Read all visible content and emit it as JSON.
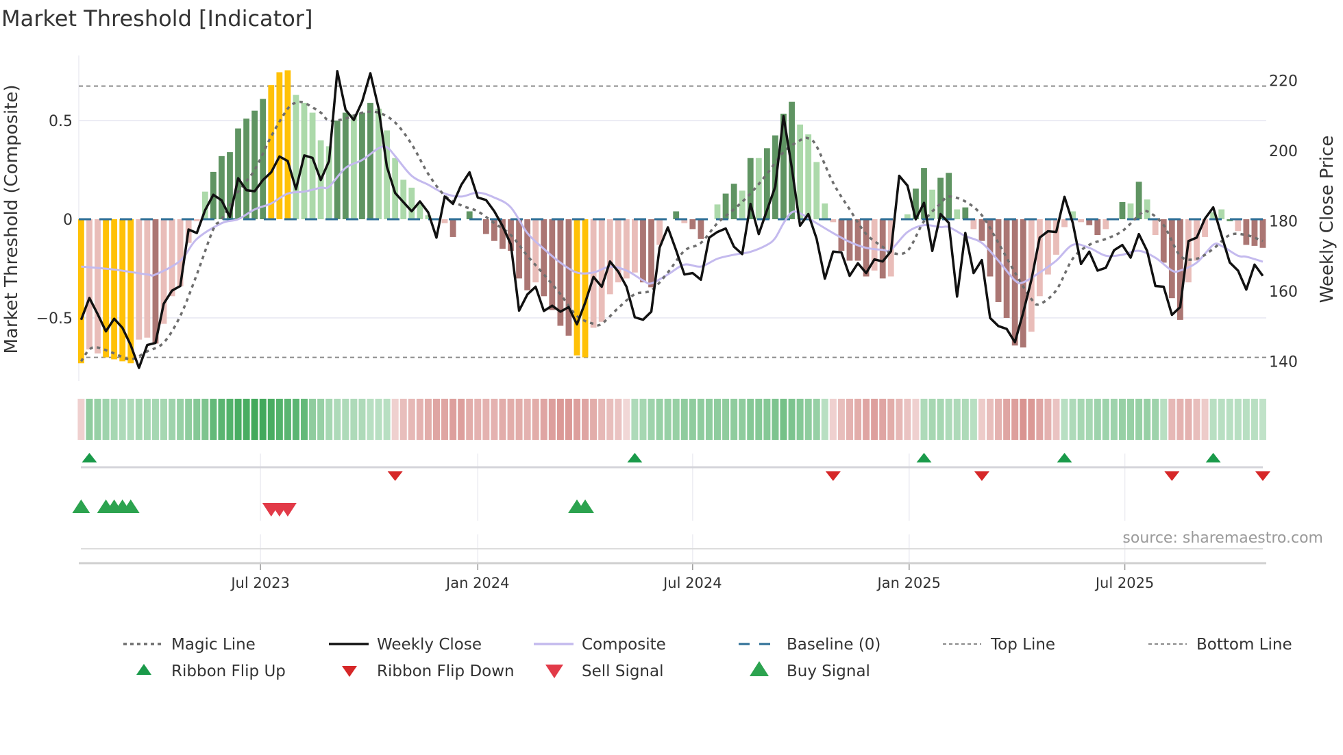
{
  "title": "Market Threshold [Indicator]",
  "source": "source: sharemaestro.com",
  "chart_data": {
    "type": "bar",
    "title": "Market Threshold [Indicator]",
    "ylabel": "Market Threshold (Composite)",
    "ylabel_right": "Weekly Close Price",
    "ylim": [
      -0.82,
      0.83
    ],
    "ylim_right": [
      133.1,
      225.6
    ],
    "yticks": [
      {
        "v": 0.5,
        "label": "0.5"
      },
      {
        "v": 0,
        "label": "0"
      },
      {
        "v": -0.5,
        "label": "−0.5"
      }
    ],
    "yticks_right": [
      {
        "v": 220,
        "label": "220"
      },
      {
        "v": 200,
        "label": "200"
      },
      {
        "v": 180,
        "label": "180"
      },
      {
        "v": 160,
        "label": "160"
      },
      {
        "v": 140,
        "label": "140"
      }
    ],
    "x_unit": "week index (0 = early Feb 2023, 143 = late Oct 2025)",
    "xticks": [
      {
        "x": 21.7,
        "label": "Jul 2023"
      },
      {
        "x": 48.0,
        "label": "Jan 2024"
      },
      {
        "x": 74.0,
        "label": "Jul 2024"
      },
      {
        "x": 100.2,
        "label": "Jan 2025"
      },
      {
        "x": 126.3,
        "label": "Jul 2025"
      }
    ],
    "grid": true,
    "top_line": 0.675,
    "bottom_line": -0.7,
    "baseline": 0,
    "colors": {
      "extreme": "#ffc107",
      "pos_strong": "#5f9462",
      "pos_weak": "#acd9aa",
      "neg_weak": "#e9bdb9",
      "neg_strong": "#ab7673",
      "close": "#111111",
      "composite": "#c4baee",
      "magic": "#6e6e6e",
      "baseline": "#2d6e96",
      "bounds": "#8a8a8a",
      "flip_up": "#1a9a4a",
      "flip_down": "#d62728",
      "buy": "#2ca34f",
      "sell": "#e23a48"
    },
    "bar_type_codes": {
      "y": "extreme",
      "d": "pos_strong",
      "l": "pos_weak",
      "p": "neg_weak",
      "b": "neg_strong"
    },
    "bars": [
      -0.73,
      -0.66,
      -0.68,
      -0.7,
      -0.71,
      -0.72,
      -0.73,
      -0.61,
      -0.6,
      -0.63,
      -0.53,
      -0.39,
      -0.34,
      -0.12,
      -0.01,
      0.14,
      0.24,
      0.32,
      0.34,
      0.46,
      0.51,
      0.55,
      0.61,
      0.68,
      0.745,
      0.755,
      0.63,
      0.59,
      0.54,
      0.4,
      0.37,
      0.5,
      0.54,
      0.53,
      0.54,
      0.59,
      0.56,
      0.45,
      0.31,
      0.2,
      0.16,
      0.08,
      0.02,
      0.005,
      -0.02,
      -0.09,
      0,
      0.04,
      0,
      -0.075,
      -0.11,
      -0.15,
      -0.16,
      -0.3,
      -0.36,
      -0.32,
      -0.39,
      -0.46,
      -0.54,
      -0.59,
      -0.69,
      -0.7,
      -0.55,
      -0.52,
      -0.38,
      -0.32,
      -0.3,
      -0.27,
      -0.32,
      -0.345,
      -0.13,
      0,
      0.04,
      -0.02,
      -0.05,
      -0.1,
      0,
      0.075,
      0.13,
      0.18,
      0.145,
      0.31,
      0.31,
      0.36,
      0.425,
      0.535,
      0.595,
      0.48,
      0.43,
      0.29,
      0.08,
      -0.015,
      -0.16,
      -0.21,
      -0.21,
      -0.29,
      -0.26,
      -0.3,
      -0.29,
      0,
      0.025,
      0.155,
      0.26,
      0.15,
      0.21,
      0.235,
      0.05,
      0.06,
      -0.05,
      -0.11,
      -0.29,
      -0.42,
      -0.5,
      -0.64,
      -0.65,
      -0.57,
      -0.39,
      -0.28,
      -0.18,
      -0.04,
      0.04,
      -0.015,
      -0.03,
      -0.08,
      -0.05,
      0,
      0.087,
      0.08,
      0.19,
      0.1,
      -0.08,
      -0.22,
      -0.4,
      -0.51,
      -0.32,
      -0.21,
      -0.09,
      0.035,
      0.05,
      -0.01,
      -0.06,
      -0.13,
      -0.135,
      -0.145
    ],
    "bar_types": "yppyyyyppbpppppldddddddyyylllllddlddllllllllpbpdpbbbbbbpbbbbyyppppppbbppdpbbplddldldddd",
    "bar_types_rest": "llllpbbbbpbpplddlddldpbbbbbbppppplpbbppdldlpbbbppplldpbbbb",
    "weekly_close": [
      151.9,
      158.1,
      153.5,
      148.6,
      152.2,
      149.6,
      144.7,
      138.2,
      144.7,
      145.3,
      156.5,
      160.2,
      161.5,
      177.6,
      176.6,
      183.1,
      187.5,
      185.9,
      181.2,
      192.2,
      188.8,
      188.5,
      191.7,
      193.9,
      198.4,
      197.1,
      189.1,
      198.7,
      198.0,
      191.7,
      197.1,
      222.7,
      211.7,
      208.8,
      214.0,
      222.1,
      212.1,
      195.5,
      188.0,
      185.4,
      182.8,
      185.6,
      182.5,
      175.3,
      187.0,
      184.9,
      190.3,
      193.9,
      186.7,
      186.0,
      182.8,
      178.6,
      173.4,
      154.5,
      159.1,
      161.3,
      154.4,
      155.9,
      154.2,
      155.5,
      150.6,
      156.8,
      164.1,
      161.3,
      168.5,
      165.6,
      161.3,
      152.6,
      151.9,
      154.2,
      172.4,
      178.2,
      171.7,
      164.8,
      165.2,
      163.3,
      175.3,
      176.9,
      177.9,
      172.7,
      170.6,
      184.9,
      176.3,
      183.1,
      189.8,
      209.9,
      195.2,
      178.7,
      182.0,
      175.0,
      163.6,
      171.3,
      171.1,
      164.4,
      168.0,
      165.2,
      169.1,
      168.5,
      171.4,
      192.9,
      190.1,
      180.5,
      185.2,
      171.5,
      182.0,
      179.5,
      158.5,
      176.6,
      165.2,
      168.9,
      152.4,
      150.1,
      149.3,
      145.5,
      153.9,
      163.3,
      175.3,
      177.1,
      176.9,
      186.9,
      179.5,
      167.8,
      171.3,
      165.9,
      166.7,
      171.7,
      173.2,
      169.6,
      176.3,
      171.5,
      161.5,
      161.3,
      153.3,
      155.5,
      174.3,
      175.3,
      180.7,
      183.9,
      176.0,
      168.2,
      165.9,
      160.5,
      167.6,
      164.4
    ],
    "magic_line": [
      [
        0,
        -0.72
      ],
      [
        1,
        -0.66
      ],
      [
        2,
        -0.65
      ],
      [
        4,
        -0.68
      ],
      [
        6,
        -0.71
      ],
      [
        8,
        -0.67
      ],
      [
        10,
        -0.625
      ],
      [
        12,
        -0.49
      ],
      [
        14,
        -0.28
      ],
      [
        16,
        -0.05
      ],
      [
        17,
        0
      ],
      [
        19,
        0.14
      ],
      [
        21,
        0.25
      ],
      [
        23,
        0.42
      ],
      [
        25,
        0.56
      ],
      [
        26,
        0.59
      ],
      [
        27,
        0.59
      ],
      [
        29,
        0.54
      ],
      [
        30,
        0.5
      ],
      [
        32,
        0.51
      ],
      [
        34,
        0.54
      ],
      [
        36,
        0.54
      ],
      [
        38,
        0.49
      ],
      [
        40,
        0.38
      ],
      [
        42,
        0.23
      ],
      [
        44,
        0.12
      ],
      [
        46,
        0.07
      ],
      [
        48,
        0.04
      ],
      [
        50,
        -0.02
      ],
      [
        52,
        -0.08
      ],
      [
        54,
        -0.185
      ],
      [
        56,
        -0.28
      ],
      [
        58,
        -0.38
      ],
      [
        60,
        -0.49
      ],
      [
        62,
        -0.53
      ],
      [
        63,
        -0.53
      ],
      [
        65,
        -0.45
      ],
      [
        67,
        -0.38
      ],
      [
        69,
        -0.36
      ],
      [
        71,
        -0.27
      ],
      [
        73,
        -0.16
      ],
      [
        75,
        -0.12
      ],
      [
        77,
        -0.02
      ],
      [
        79,
        0.05
      ],
      [
        81,
        0.13
      ],
      [
        83,
        0.23
      ],
      [
        85,
        0.34
      ],
      [
        87,
        0.4
      ],
      [
        88,
        0.41
      ],
      [
        89,
        0.37
      ],
      [
        91,
        0.185
      ],
      [
        93,
        0.05
      ],
      [
        95,
        -0.075
      ],
      [
        97,
        -0.14
      ],
      [
        98,
        -0.17
      ],
      [
        100,
        -0.16
      ],
      [
        102,
        -0.01
      ],
      [
        104,
        0.08
      ],
      [
        105,
        0.115
      ],
      [
        107,
        0.09
      ],
      [
        109,
        0.02
      ],
      [
        111,
        -0.12
      ],
      [
        113,
        -0.27
      ],
      [
        115,
        -0.405
      ],
      [
        116,
        -0.43
      ],
      [
        118,
        -0.36
      ],
      [
        120,
        -0.2
      ],
      [
        122,
        -0.13
      ],
      [
        124,
        -0.1
      ],
      [
        126,
        -0.06
      ],
      [
        128,
        0.02
      ],
      [
        129,
        0.04
      ],
      [
        131,
        -0.03
      ],
      [
        133,
        -0.185
      ],
      [
        135,
        -0.2
      ],
      [
        137,
        -0.15
      ],
      [
        139,
        -0.08
      ],
      [
        141,
        -0.08
      ],
      [
        143,
        -0.11
      ]
    ],
    "composite_line": [
      [
        0,
        -0.24
      ],
      [
        4,
        -0.255
      ],
      [
        8,
        -0.28
      ],
      [
        9,
        -0.28
      ],
      [
        12,
        -0.21
      ],
      [
        14,
        -0.1
      ],
      [
        17,
        -0.02
      ],
      [
        19,
        0
      ],
      [
        21,
        0.05
      ],
      [
        23,
        0.08
      ],
      [
        25,
        0.13
      ],
      [
        27,
        0.14
      ],
      [
        29,
        0.16
      ],
      [
        30,
        0.165
      ],
      [
        32,
        0.26
      ],
      [
        34,
        0.3
      ],
      [
        36,
        0.36
      ],
      [
        37,
        0.365
      ],
      [
        38,
        0.32
      ],
      [
        40,
        0.22
      ],
      [
        42,
        0.175
      ],
      [
        44,
        0.13
      ],
      [
        46,
        0.115
      ],
      [
        48,
        0.135
      ],
      [
        50,
        0.11
      ],
      [
        52,
        0.06
      ],
      [
        54,
        -0.07
      ],
      [
        56,
        -0.15
      ],
      [
        58,
        -0.22
      ],
      [
        60,
        -0.27
      ],
      [
        62,
        -0.27
      ],
      [
        64,
        -0.24
      ],
      [
        66,
        -0.26
      ],
      [
        68,
        -0.31
      ],
      [
        69,
        -0.325
      ],
      [
        71,
        -0.28
      ],
      [
        73,
        -0.23
      ],
      [
        75,
        -0.24
      ],
      [
        77,
        -0.2
      ],
      [
        79,
        -0.18
      ],
      [
        81,
        -0.165
      ],
      [
        83,
        -0.13
      ],
      [
        84,
        -0.095
      ],
      [
        85,
        -0.02
      ],
      [
        86,
        0.035
      ],
      [
        87,
        0.03
      ],
      [
        89,
        -0.02
      ],
      [
        91,
        -0.07
      ],
      [
        93,
        -0.115
      ],
      [
        95,
        -0.145
      ],
      [
        97,
        -0.155
      ],
      [
        98,
        -0.155
      ],
      [
        100,
        -0.065
      ],
      [
        102,
        -0.03
      ],
      [
        104,
        -0.04
      ],
      [
        105,
        -0.04
      ],
      [
        107,
        -0.085
      ],
      [
        109,
        -0.12
      ],
      [
        111,
        -0.21
      ],
      [
        113,
        -0.31
      ],
      [
        114,
        -0.32
      ],
      [
        116,
        -0.27
      ],
      [
        118,
        -0.21
      ],
      [
        120,
        -0.13
      ],
      [
        122,
        -0.145
      ],
      [
        124,
        -0.185
      ],
      [
        126,
        -0.18
      ],
      [
        128,
        -0.16
      ],
      [
        130,
        -0.195
      ],
      [
        132,
        -0.26
      ],
      [
        133,
        -0.26
      ],
      [
        135,
        -0.22
      ],
      [
        137,
        -0.13
      ],
      [
        138,
        -0.135
      ],
      [
        140,
        -0.185
      ],
      [
        141,
        -0.19
      ],
      [
        143,
        -0.215
      ]
    ],
    "ribbon": [
      -0.2,
      0.5,
      0.45,
      0.4,
      0.35,
      0.3,
      0.3,
      0.35,
      0.35,
      0.35,
      0.35,
      0.4,
      0.45,
      0.5,
      0.55,
      0.6,
      0.75,
      0.8,
      0.85,
      0.9,
      0.9,
      0.95,
      0.95,
      0.9,
      0.85,
      0.8,
      0.8,
      0.75,
      0.5,
      0.45,
      0.35,
      0.3,
      0.3,
      0.3,
      0.3,
      0.25,
      0.25,
      0.25,
      -0.2,
      -0.35,
      -0.4,
      -0.45,
      -0.5,
      -0.55,
      -0.55,
      -0.6,
      -0.6,
      -0.5,
      -0.45,
      -0.45,
      -0.45,
      -0.5,
      -0.5,
      -0.5,
      -0.45,
      -0.5,
      -0.55,
      -0.6,
      -0.65,
      -0.65,
      -0.6,
      -0.55,
      -0.5,
      -0.4,
      -0.35,
      -0.3,
      -0.15,
      0.3,
      0.35,
      0.4,
      0.45,
      0.45,
      0.45,
      0.5,
      0.5,
      0.5,
      0.5,
      0.5,
      0.5,
      0.5,
      0.5,
      0.55,
      0.55,
      0.55,
      0.6,
      0.65,
      0.6,
      0.55,
      0.5,
      0.45,
      0.25,
      -0.2,
      -0.35,
      -0.45,
      -0.5,
      -0.55,
      -0.6,
      -0.55,
      -0.5,
      -0.4,
      -0.3,
      -0.2,
      0.3,
      0.35,
      0.35,
      0.3,
      0.3,
      0.3,
      0.25,
      -0.25,
      -0.35,
      -0.45,
      -0.55,
      -0.6,
      -0.7,
      -0.65,
      -0.55,
      -0.45,
      -0.3,
      0.25,
      0.3,
      0.35,
      0.35,
      0.4,
      0.4,
      0.4,
      0.45,
      0.45,
      0.45,
      0.45,
      0.4,
      0.25,
      -0.4,
      -0.45,
      -0.45,
      -0.35,
      -0.25,
      0.25,
      0.25,
      0.25,
      0.25,
      0.25,
      0.25,
      0.2
    ],
    "ribbon_flip_up": [
      1,
      67,
      102,
      119,
      137
    ],
    "ribbon_flip_down": [
      38,
      91,
      109,
      132,
      143
    ],
    "buy_signals": [
      0,
      3,
      4,
      5,
      6,
      60,
      61
    ],
    "sell_signals": [
      23,
      24,
      25
    ],
    "legend": [
      {
        "label": "Magic Line",
        "marker": "dotted-line"
      },
      {
        "label": "Weekly Close",
        "marker": "solid-line"
      },
      {
        "label": "Composite",
        "marker": "lavender-line"
      },
      {
        "label": "Baseline (0)",
        "marker": "dashed-line"
      },
      {
        "label": "Top Line",
        "marker": "thin-dotted-line"
      },
      {
        "label": "Bottom Line",
        "marker": "thin-dotted-line"
      },
      {
        "label": "Ribbon Flip Up",
        "marker": "triangle-up-small"
      },
      {
        "label": "Ribbon Flip Down",
        "marker": "triangle-down-small"
      },
      {
        "label": "Sell Signal",
        "marker": "triangle-down"
      },
      {
        "label": "Buy Signal",
        "marker": "triangle-up"
      }
    ]
  }
}
